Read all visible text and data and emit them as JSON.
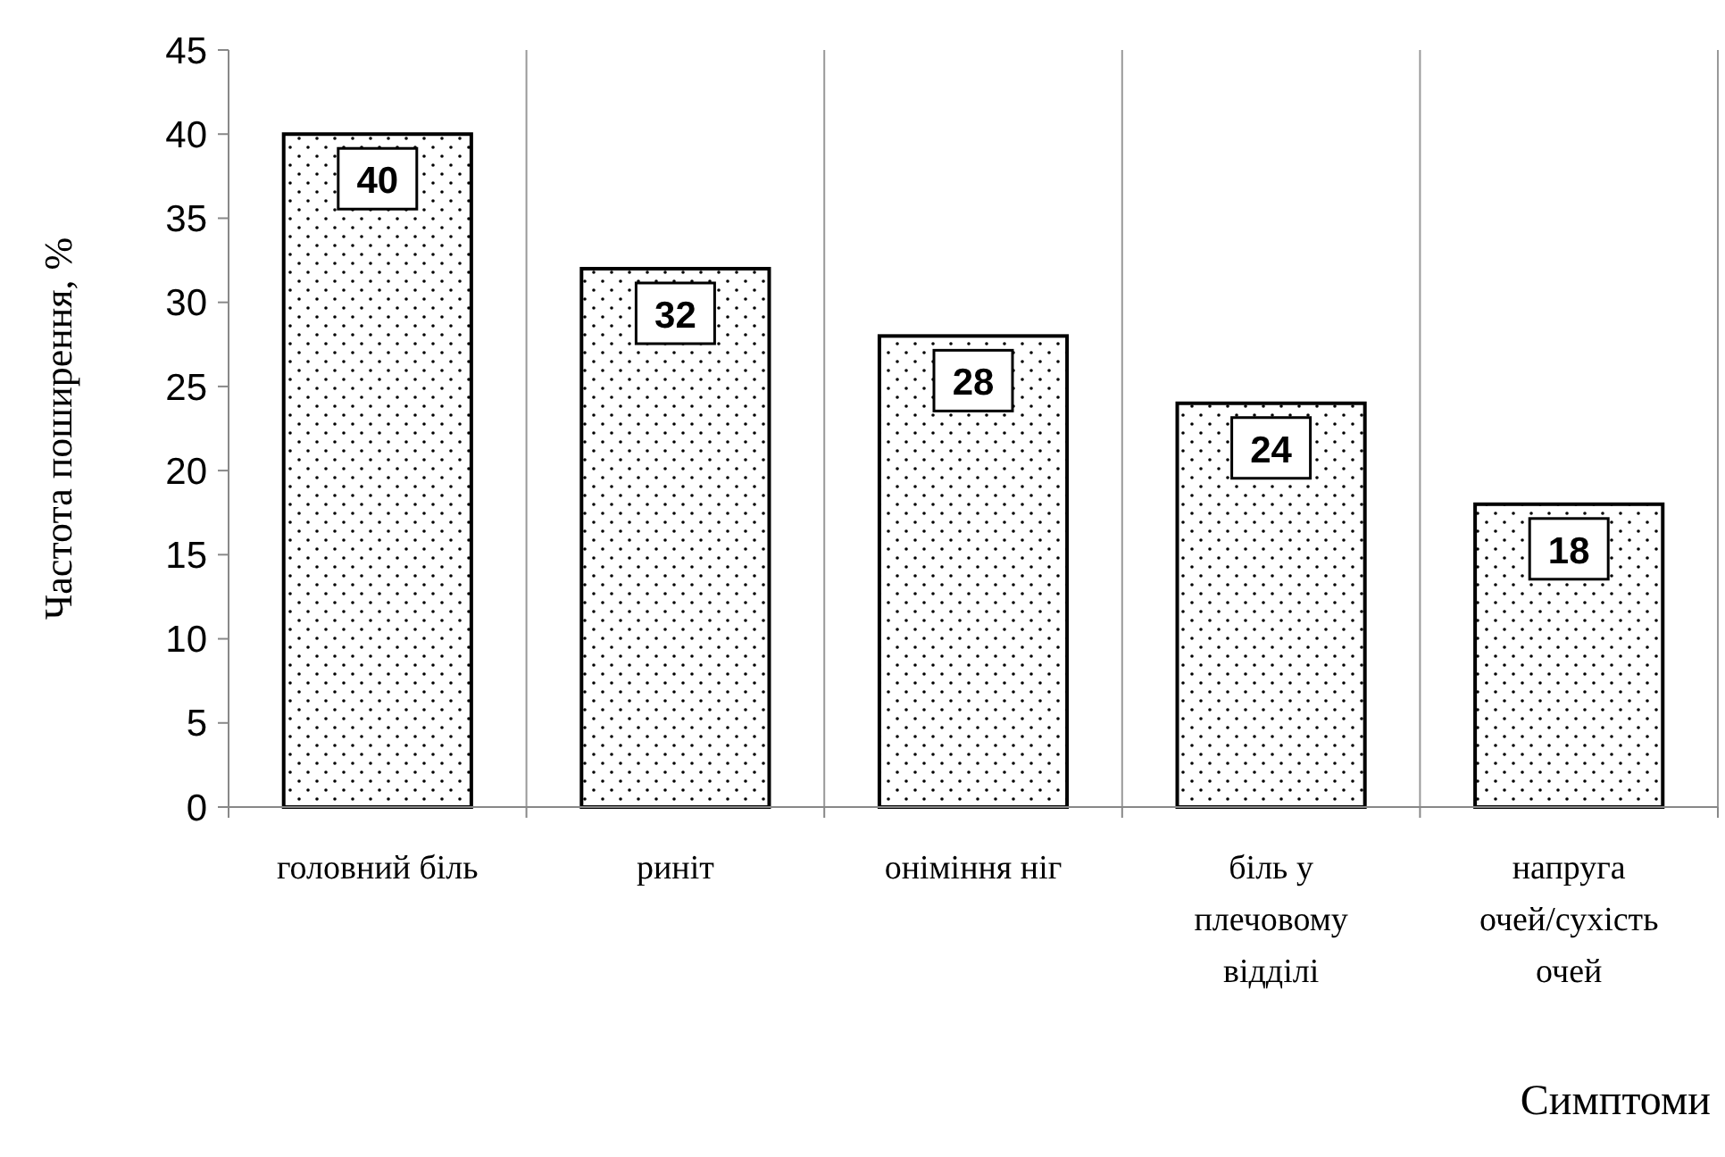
{
  "chart_data": {
    "type": "bar",
    "xlabel": "Симптоми",
    "ylabel": "Частота поширення, %",
    "categories": [
      "головний біль",
      "риніт",
      "оніміння ніг",
      "біль у плечовому відділі",
      "напруга очей/сухість очей"
    ],
    "values": [
      40,
      32,
      28,
      24,
      18
    ],
    "ylim": [
      0,
      45
    ],
    "yticks": [
      0,
      5,
      10,
      15,
      20,
      25,
      30,
      35,
      40,
      45
    ],
    "grid": "x",
    "data_labels": true
  }
}
